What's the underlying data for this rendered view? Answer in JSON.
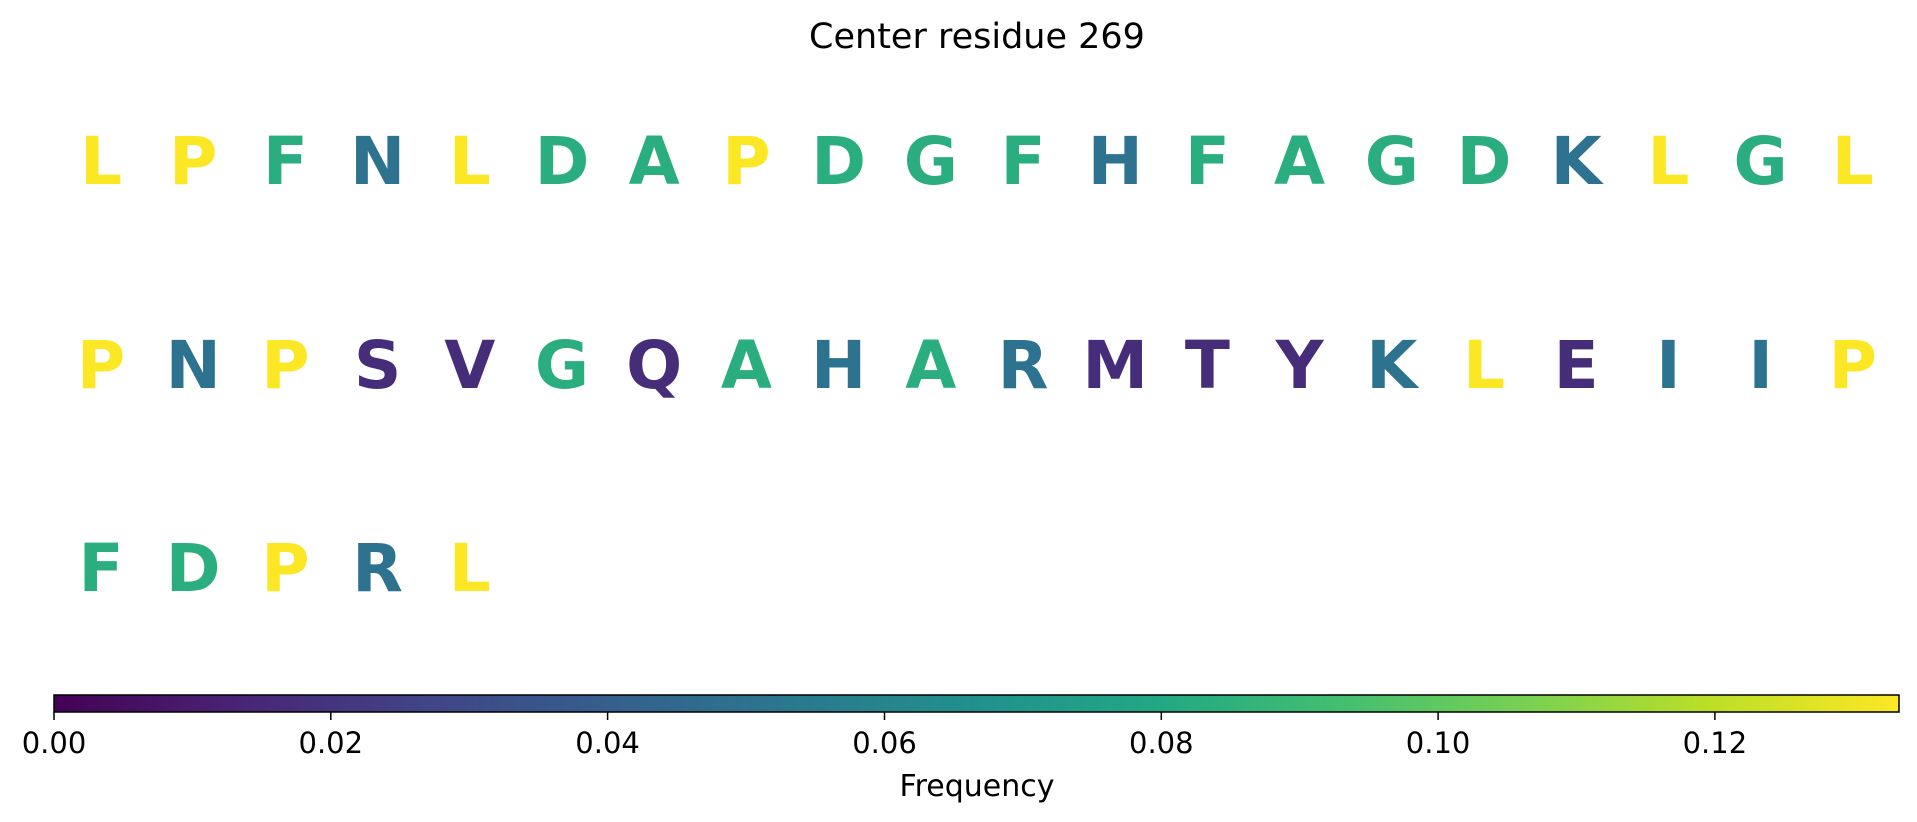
{
  "chart_data": {
    "type": "table",
    "title": "Center residue 269",
    "residues": [
      {
        "letter": "L",
        "frequency": 0.133
      },
      {
        "letter": "P",
        "frequency": 0.133
      },
      {
        "letter": "F",
        "frequency": 0.083
      },
      {
        "letter": "N",
        "frequency": 0.05
      },
      {
        "letter": "L",
        "frequency": 0.133
      },
      {
        "letter": "D",
        "frequency": 0.083
      },
      {
        "letter": "A",
        "frequency": 0.083
      },
      {
        "letter": "P",
        "frequency": 0.133
      },
      {
        "letter": "D",
        "frequency": 0.083
      },
      {
        "letter": "G",
        "frequency": 0.083
      },
      {
        "letter": "F",
        "frequency": 0.083
      },
      {
        "letter": "H",
        "frequency": 0.05
      },
      {
        "letter": "F",
        "frequency": 0.083
      },
      {
        "letter": "A",
        "frequency": 0.083
      },
      {
        "letter": "G",
        "frequency": 0.083
      },
      {
        "letter": "D",
        "frequency": 0.083
      },
      {
        "letter": "K",
        "frequency": 0.05
      },
      {
        "letter": "L",
        "frequency": 0.133
      },
      {
        "letter": "G",
        "frequency": 0.083
      },
      {
        "letter": "L",
        "frequency": 0.133
      },
      {
        "letter": "P",
        "frequency": 0.133
      },
      {
        "letter": "N",
        "frequency": 0.05
      },
      {
        "letter": "P",
        "frequency": 0.133
      },
      {
        "letter": "S",
        "frequency": 0.017
      },
      {
        "letter": "V",
        "frequency": 0.017
      },
      {
        "letter": "G",
        "frequency": 0.083
      },
      {
        "letter": "Q",
        "frequency": 0.017
      },
      {
        "letter": "A",
        "frequency": 0.083
      },
      {
        "letter": "H",
        "frequency": 0.05
      },
      {
        "letter": "A",
        "frequency": 0.083
      },
      {
        "letter": "R",
        "frequency": 0.05
      },
      {
        "letter": "M",
        "frequency": 0.017
      },
      {
        "letter": "T",
        "frequency": 0.017
      },
      {
        "letter": "Y",
        "frequency": 0.017
      },
      {
        "letter": "K",
        "frequency": 0.05
      },
      {
        "letter": "L",
        "frequency": 0.133
      },
      {
        "letter": "E",
        "frequency": 0.017
      },
      {
        "letter": "I",
        "frequency": 0.05
      },
      {
        "letter": "I",
        "frequency": 0.05
      },
      {
        "letter": "P",
        "frequency": 0.133
      },
      {
        "letter": "F",
        "frequency": 0.083
      },
      {
        "letter": "D",
        "frequency": 0.083
      },
      {
        "letter": "P",
        "frequency": 0.133
      },
      {
        "letter": "R",
        "frequency": 0.05
      },
      {
        "letter": "L",
        "frequency": 0.133
      }
    ],
    "letters_per_row": 20,
    "colorbar": {
      "label": "Frequency",
      "colormap": "viridis",
      "range": [
        0,
        0.1333
      ],
      "ticks": [
        0.0,
        0.02,
        0.04,
        0.06,
        0.08,
        0.1,
        0.12
      ],
      "tick_labels": [
        "0.00",
        "0.02",
        "0.04",
        "0.06",
        "0.08",
        "0.10",
        "0.12"
      ]
    }
  }
}
